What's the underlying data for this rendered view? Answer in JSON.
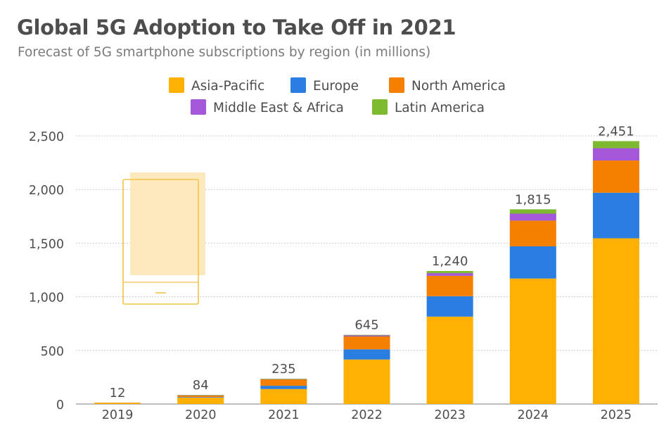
{
  "header": {
    "title": "Global 5G Adoption to Take Off in 2021",
    "subtitle": "Forecast of 5G smartphone subscriptions by region (in millions)"
  },
  "colors": {
    "Asia-Pacific": "#ffb000",
    "Europe": "#2a7de1",
    "North America": "#f58000",
    "Middle East & Africa": "#a457d8",
    "Latin America": "#7dba2f",
    "grid": "#cccccc",
    "axis_text": "#4d4d4d",
    "phone_icon": "#f5c246"
  },
  "icon": "smartphone-icon",
  "chart_data": {
    "type": "bar",
    "stacked": true,
    "categories": [
      "2019",
      "2020",
      "2021",
      "2022",
      "2023",
      "2024",
      "2025"
    ],
    "series": [
      {
        "name": "Asia-Pacific",
        "values": [
          10,
          60,
          140,
          415,
          815,
          1170,
          1545
        ]
      },
      {
        "name": "Europe",
        "values": [
          0,
          5,
          30,
          95,
          190,
          300,
          425
        ]
      },
      {
        "name": "North America",
        "values": [
          2,
          17,
          60,
          120,
          190,
          240,
          300
        ]
      },
      {
        "name": "Middle East & Africa",
        "values": [
          0,
          1,
          3,
          10,
          25,
          65,
          115
        ]
      },
      {
        "name": "Latin America",
        "values": [
          0,
          1,
          2,
          5,
          20,
          40,
          66
        ]
      }
    ],
    "totals": [
      "12",
      "84",
      "235",
      "645",
      "1,240",
      "1,815",
      "2,451"
    ],
    "yticks": [
      "0",
      "500",
      "1,000",
      "1,500",
      "2,000",
      "2,500"
    ],
    "ylim": [
      0,
      2500
    ],
    "grid": true,
    "legend_position": "top-center"
  }
}
